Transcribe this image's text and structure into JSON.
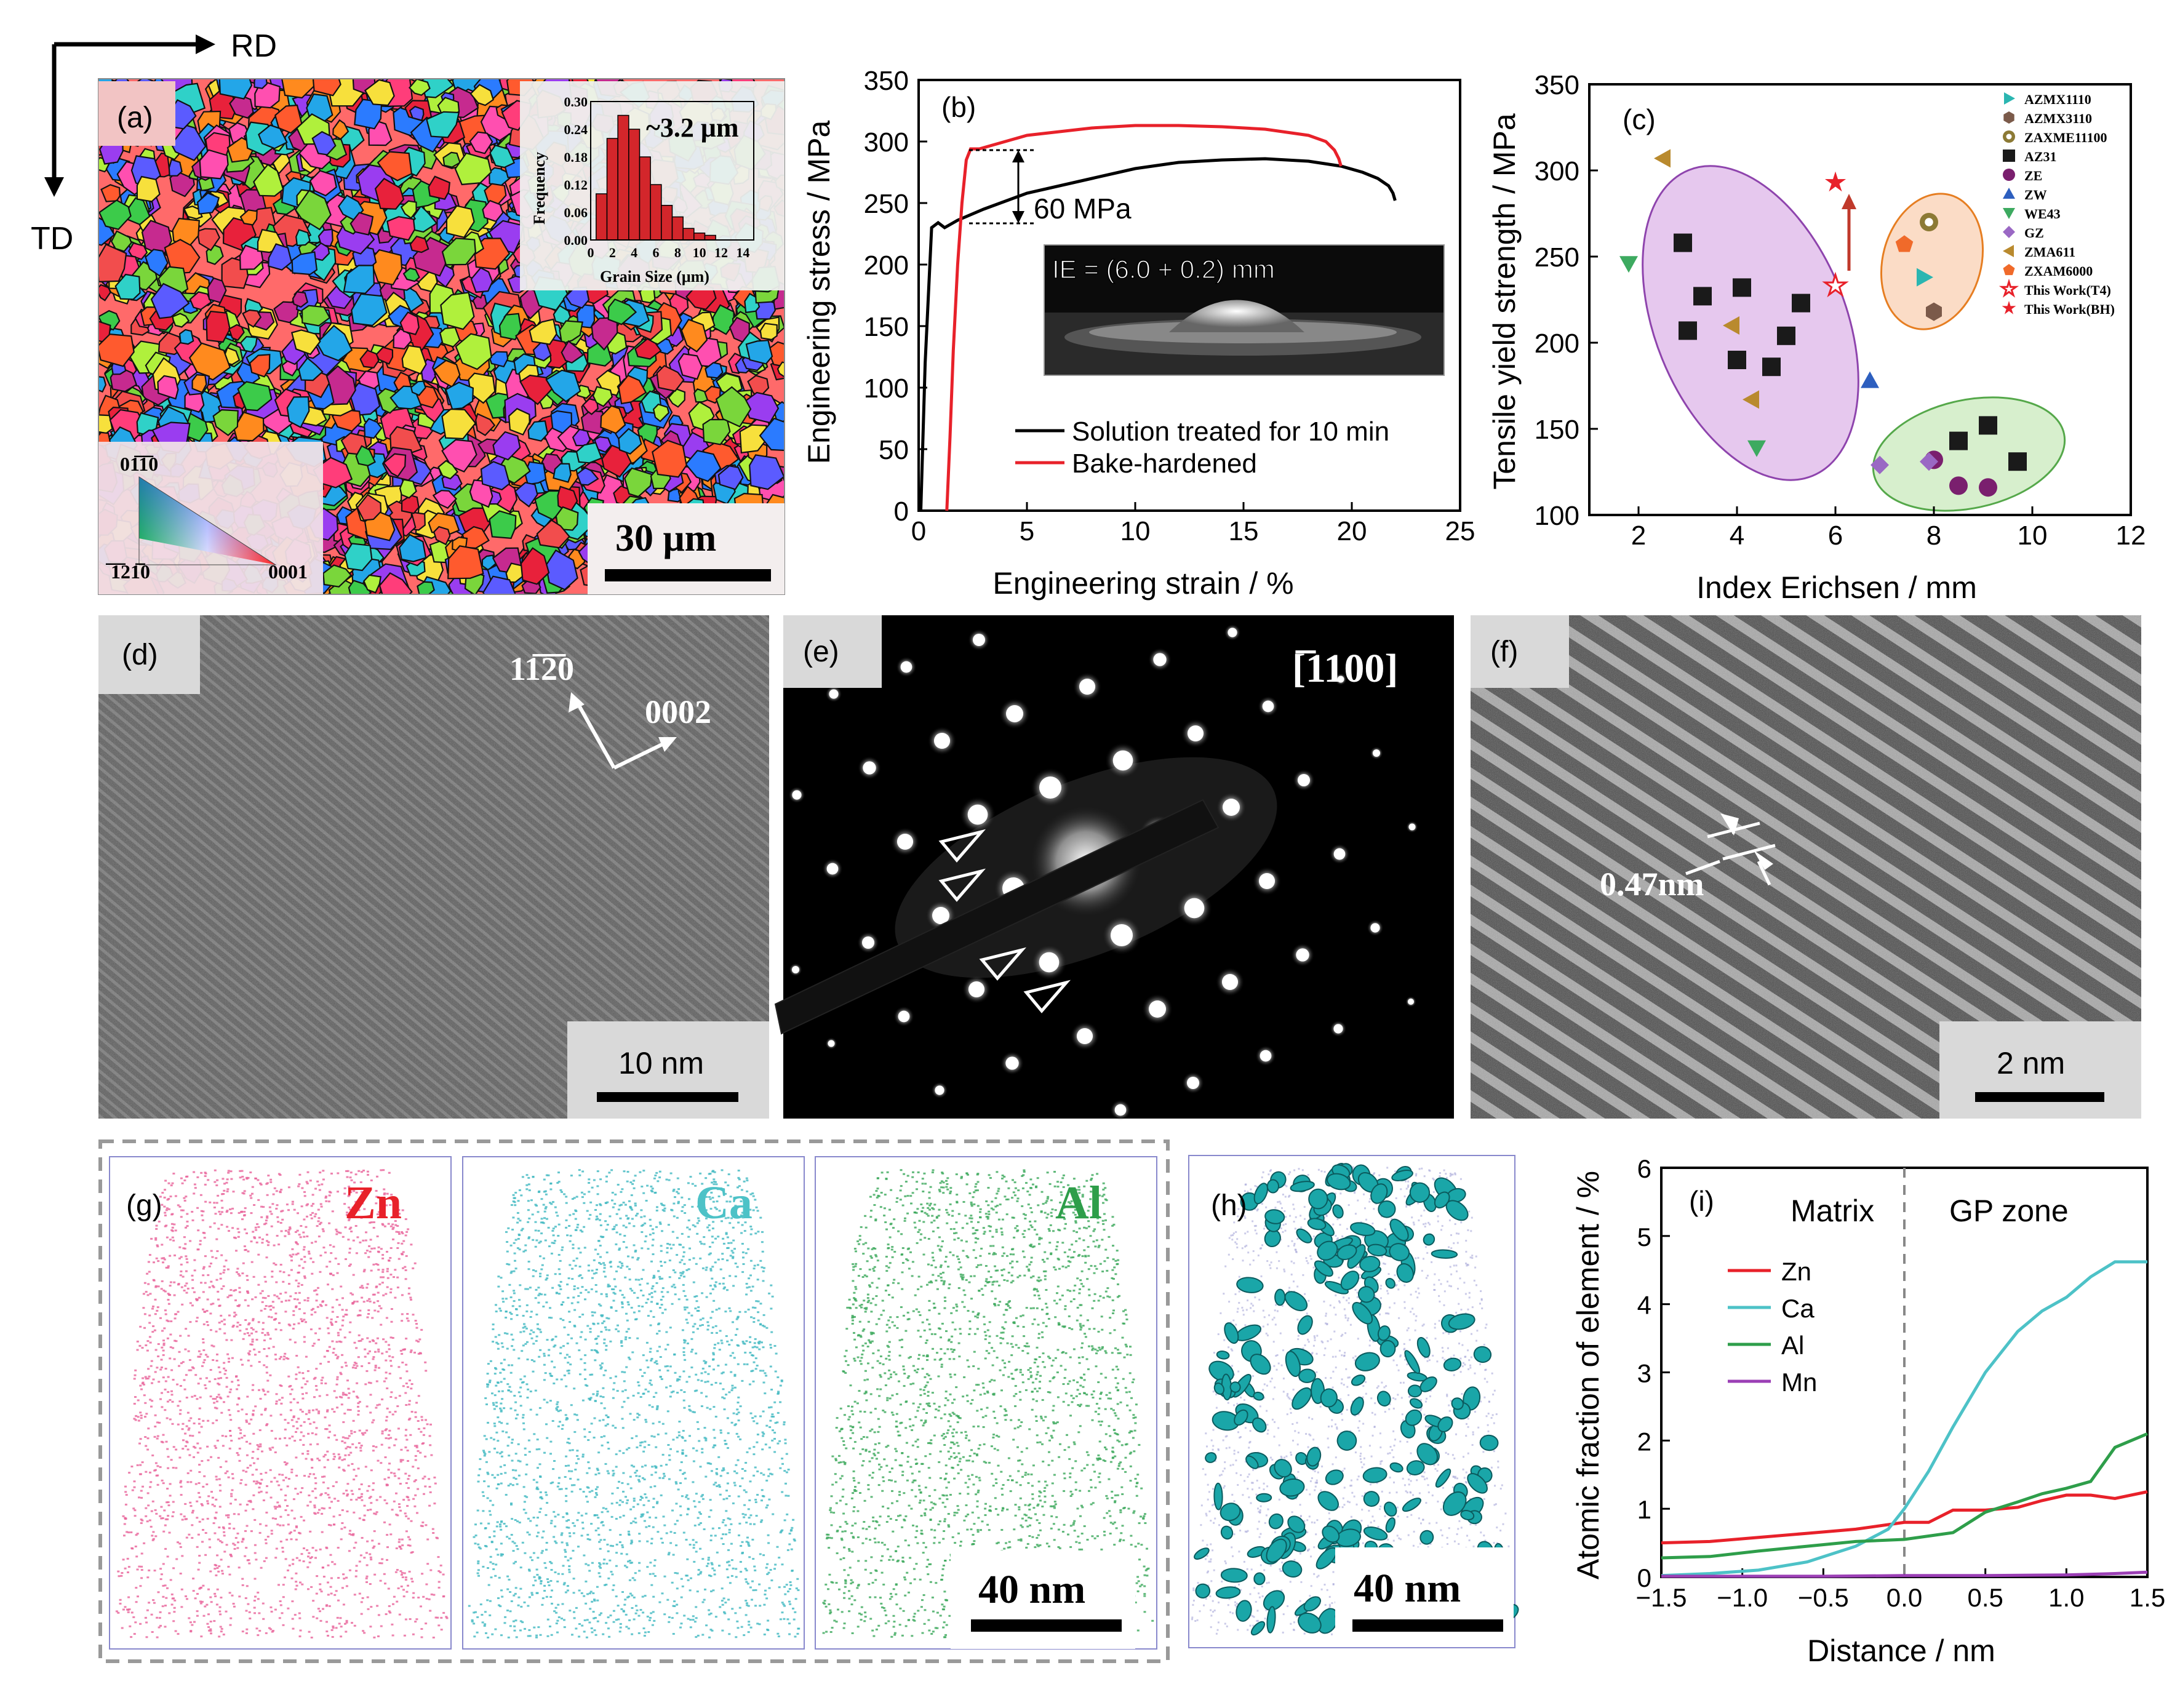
{
  "directions": {
    "rd": "RD",
    "td": "TD"
  },
  "panel_a": {
    "label": "(a)",
    "hist": {
      "ylabel": "Frequency",
      "xlabel": "Grain Size (μm)",
      "annotation": "~3.2 μm",
      "yticks": [
        "0.30",
        "0.24",
        "0.18",
        "0.12",
        "0.06",
        "0.00"
      ],
      "xticks": [
        "0",
        "2",
        "4",
        "6",
        "8",
        "10",
        "12",
        "14"
      ],
      "bars": [
        0.1,
        0.22,
        0.27,
        0.24,
        0.18,
        0.12,
        0.075,
        0.05,
        0.025,
        0.015,
        0.01
      ]
    },
    "ipf": {
      "top": "01̅1̅0",
      "left": "̅1̅21̅0",
      "right": "0001"
    },
    "scale": "30 μm"
  },
  "chart_data": [
    {
      "panel": "b",
      "type": "line",
      "xlabel": "Engineering strain / %",
      "ylabel": "Engineering stress / MPa",
      "xlim": [
        0,
        25
      ],
      "ylim": [
        0,
        350
      ],
      "xticks": [
        "0",
        "5",
        "10",
        "15",
        "20",
        "25"
      ],
      "yticks": [
        "0",
        "50",
        "100",
        "150",
        "200",
        "250",
        "300",
        "350"
      ],
      "series": [
        {
          "name": "Solution treated for 10 min",
          "color": "#000000",
          "x": [
            0.1,
            0.3,
            0.6,
            0.9,
            1.2,
            1.8,
            3,
            5,
            8,
            10,
            12,
            14,
            16,
            18,
            19.5,
            20.5,
            21.2,
            21.7,
            21.9,
            22.0
          ],
          "y": [
            0,
            120,
            230,
            234,
            230,
            236,
            245,
            258,
            270,
            278,
            283,
            285,
            286,
            284,
            280,
            275,
            270,
            264,
            258,
            252
          ]
        },
        {
          "name": "Bake-hardened",
          "color": "#e8212a",
          "x": [
            1.3,
            1.45,
            1.6,
            1.8,
            2.0,
            2.2,
            2.4,
            2.8,
            3,
            5,
            8,
            10,
            12,
            14,
            16,
            18,
            18.8,
            19.2,
            19.4,
            19.5
          ],
          "y": [
            0,
            60,
            130,
            200,
            250,
            285,
            294,
            294,
            295,
            305,
            311,
            313,
            313,
            312,
            310,
            305,
            300,
            293,
            286,
            280
          ]
        }
      ],
      "annotation": "60 MPa",
      "inset": "IE = (6.0 + 0.2) mm"
    },
    {
      "panel": "c",
      "type": "scatter",
      "xlabel": "Index Erichsen / mm",
      "ylabel": "Tensile yield strength / MPa",
      "xlim": [
        1,
        12
      ],
      "ylim": [
        100,
        350
      ],
      "xticks": [
        "2",
        "4",
        "6",
        "8",
        "10",
        "12"
      ],
      "yticks": [
        "100",
        "150",
        "200",
        "250",
        "300",
        "350"
      ],
      "series": [
        {
          "name": "AZMX1110",
          "marker": "tri-right",
          "color": "#2bb6b1",
          "points": [
            [
              7.8,
              238
            ]
          ]
        },
        {
          "name": "AZMX3110",
          "marker": "hexagon",
          "color": "#7b5a4a",
          "points": [
            [
              8.0,
              218
            ]
          ]
        },
        {
          "name": "ZAXME11100",
          "marker": "circle-dot",
          "color": "#8c7a35",
          "points": [
            [
              7.9,
              270
            ]
          ]
        },
        {
          "name": "AZ31",
          "marker": "square",
          "color": "#1a1a1a",
          "points": [
            [
              2.9,
              258
            ],
            [
              3.0,
              207
            ],
            [
              3.3,
              227
            ],
            [
              4.0,
              190
            ],
            [
              4.1,
              232
            ],
            [
              4.7,
              186
            ],
            [
              5.0,
              204
            ],
            [
              5.3,
              223
            ],
            [
              8.5,
              143
            ],
            [
              9.1,
              152
            ],
            [
              9.7,
              131
            ]
          ]
        },
        {
          "name": "ZE",
          "marker": "circle",
          "color": "#7a1f6e",
          "points": [
            [
              8.0,
              132
            ],
            [
              8.5,
              117
            ],
            [
              9.1,
              116
            ]
          ]
        },
        {
          "name": "ZW",
          "marker": "triangle",
          "color": "#2d5fbf",
          "points": [
            [
              6.7,
              178
            ]
          ]
        },
        {
          "name": "WE43",
          "marker": "tri-down",
          "color": "#3daa60",
          "points": [
            [
              1.8,
              246
            ],
            [
              4.4,
              139
            ]
          ]
        },
        {
          "name": "GZ",
          "marker": "diamond",
          "color": "#9a68c4",
          "points": [
            [
              6.9,
              129
            ],
            [
              7.9,
              131
            ]
          ]
        },
        {
          "name": "ZMA611",
          "marker": "tri-left",
          "color": "#b98a2e",
          "points": [
            [
              2.5,
              307
            ],
            [
              3.9,
              210
            ],
            [
              4.3,
              167
            ]
          ]
        },
        {
          "name": "ZXAM6000",
          "marker": "pentagon",
          "color": "#f06a2a",
          "points": [
            [
              7.4,
              257
            ]
          ]
        },
        {
          "name": "This Work(T4)",
          "marker": "star-open",
          "color": "#e8212a",
          "points": [
            [
              6.0,
              233
            ]
          ]
        },
        {
          "name": "This Work(BH)",
          "marker": "star",
          "color": "#e8212a",
          "points": [
            [
              6.0,
              293
            ]
          ]
        }
      ]
    },
    {
      "panel": "i",
      "type": "line",
      "xlabel": "Distance / nm",
      "ylabel": "Atomic fraction of element / %",
      "xlim": [
        -1.5,
        1.5
      ],
      "ylim": [
        0,
        6
      ],
      "xticks": [
        "−1.5",
        "−1.0",
        "−0.5",
        "0.0",
        "0.5",
        "1.0",
        "1.5"
      ],
      "yticks": [
        "0",
        "1",
        "2",
        "3",
        "4",
        "5",
        "6"
      ],
      "regions": [
        "Matrix",
        "GP zone"
      ],
      "series": [
        {
          "name": "Zn",
          "color": "#e8212a",
          "x": [
            -1.5,
            -1.2,
            -0.9,
            -0.6,
            -0.3,
            0,
            0.15,
            0.3,
            0.5,
            0.7,
            0.85,
            1.0,
            1.15,
            1.3,
            1.5
          ],
          "y": [
            0.5,
            0.52,
            0.58,
            0.64,
            0.7,
            0.8,
            0.8,
            0.98,
            0.98,
            1.02,
            1.12,
            1.2,
            1.2,
            1.15,
            1.25
          ]
        },
        {
          "name": "Ca",
          "color": "#4dc2c7",
          "x": [
            -1.5,
            -1.2,
            -0.9,
            -0.6,
            -0.3,
            -0.1,
            0,
            0.15,
            0.3,
            0.5,
            0.7,
            0.85,
            1.0,
            1.15,
            1.3,
            1.5
          ],
          "y": [
            0.02,
            0.05,
            0.1,
            0.22,
            0.45,
            0.7,
            1.0,
            1.55,
            2.2,
            3.0,
            3.6,
            3.9,
            4.1,
            4.4,
            4.62,
            4.62
          ]
        },
        {
          "name": "Al",
          "color": "#2e9e4a",
          "x": [
            -1.5,
            -1.2,
            -0.9,
            -0.6,
            -0.3,
            0,
            0.15,
            0.3,
            0.5,
            0.7,
            0.85,
            1.0,
            1.15,
            1.3,
            1.5
          ],
          "y": [
            0.28,
            0.3,
            0.38,
            0.45,
            0.52,
            0.55,
            0.6,
            0.65,
            0.95,
            1.1,
            1.22,
            1.3,
            1.4,
            1.9,
            2.1
          ]
        },
        {
          "name": "Mn",
          "color": "#9b3fb5",
          "x": [
            -1.5,
            -1.0,
            -0.5,
            0,
            0.5,
            1.0,
            1.3,
            1.5
          ],
          "y": [
            0.01,
            0.01,
            0.01,
            0.02,
            0.02,
            0.03,
            0.05,
            0.07
          ]
        }
      ]
    }
  ],
  "panel_b": {
    "label": "(b)"
  },
  "panel_c": {
    "label": "(c)"
  },
  "panel_d": {
    "label": "(d)",
    "dir1": "11̅2̅0",
    "dir2": "0002",
    "scale": "10 nm"
  },
  "panel_e": {
    "label": "(e)",
    "zone": "[̅1100]"
  },
  "panel_f": {
    "label": "(f)",
    "spacing": "0.47nm",
    "scale": "2 nm"
  },
  "panel_g": {
    "label": "(g)",
    "el1": "Zn",
    "el2": "Ca",
    "el3": "Al",
    "scale": "40 nm"
  },
  "panel_h": {
    "label": "(h)",
    "scale": "40 nm"
  },
  "panel_i": {
    "label": "(i)"
  }
}
